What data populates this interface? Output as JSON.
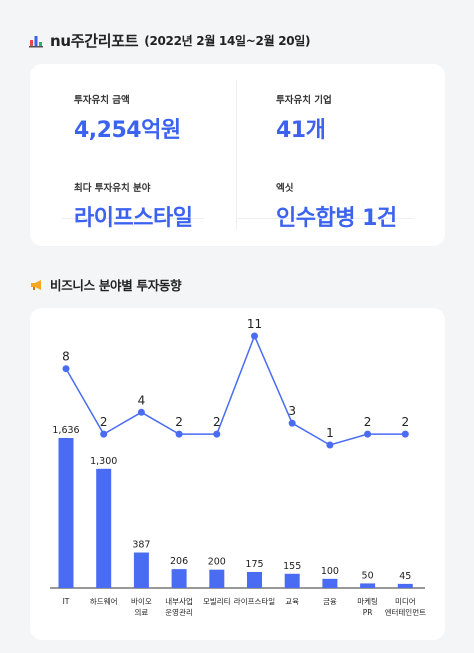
{
  "header": {
    "title": "nu주간리포트",
    "date_range": "(2022년 2월 14일~2월 20일)"
  },
  "stats": [
    {
      "label": "투자유치 금액",
      "value": "4,254억원"
    },
    {
      "label": "투자유치 기업",
      "value": "41개"
    },
    {
      "label": "최다 투자유치 분야",
      "value": "라이프스타일"
    },
    {
      "label": "엑싯",
      "value": "인수합병 1건"
    }
  ],
  "section": {
    "title": "비즈니스 분야별 투자동향"
  },
  "colors": {
    "accent": "#3c63f0",
    "bar": "#4a6cf2",
    "line": "#4a6cf2"
  },
  "icons": {
    "header_icon": "bar-chart-icon",
    "section_icon": "megaphone-icon"
  },
  "chart_data": {
    "type": "bar",
    "categories": [
      [
        "IT"
      ],
      [
        "하드웨어"
      ],
      [
        "바이오",
        "의료"
      ],
      [
        "내부사업",
        "운영관리"
      ],
      [
        "모빌리티"
      ],
      [
        "라이프스타일"
      ],
      [
        "교육"
      ],
      [
        "금융"
      ],
      [
        "마케팅",
        "PR"
      ],
      [
        "미디어",
        "엔터테인먼트"
      ]
    ],
    "series": [
      {
        "values": [
          1636,
          1300,
          387,
          206,
          200,
          175,
          155,
          100,
          50,
          45
        ],
        "labels": [
          "1,636",
          "1,300",
          "387",
          "206",
          "200",
          "175",
          "155",
          "100",
          "50",
          "45"
        ]
      },
      {
        "type": "line",
        "values": [
          8,
          2,
          4,
          2,
          2,
          11,
          3,
          1,
          2,
          2
        ]
      }
    ]
  }
}
